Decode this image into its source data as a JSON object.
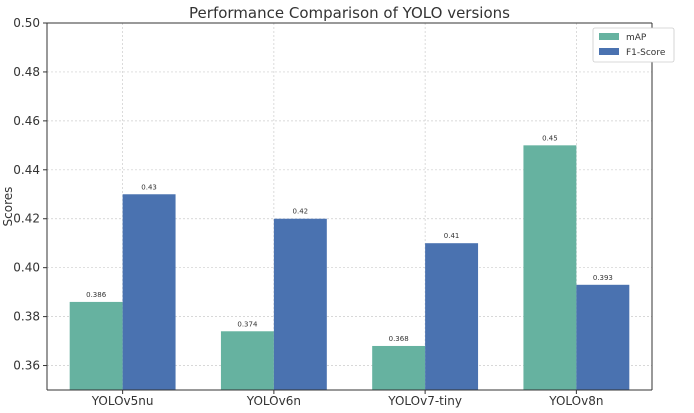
{
  "chart_data": {
    "type": "bar",
    "title": "Performance Comparison of YOLO versions",
    "xlabel": "",
    "ylabel": "Scores",
    "categories": [
      "YOLOv5nu",
      "YOLOv6n",
      "YOLOv7-tiny",
      "YOLOv8n"
    ],
    "series": [
      {
        "name": "mAP",
        "values": [
          0.386,
          0.374,
          0.368,
          0.45
        ],
        "labels": [
          "0.386",
          "0.374",
          "0.368",
          "0.45"
        ],
        "color": "#66b2a0"
      },
      {
        "name": "F1-Score",
        "values": [
          0.43,
          0.42,
          0.41,
          0.393
        ],
        "labels": [
          "0.43",
          "0.42",
          "0.41",
          "0.393"
        ],
        "color": "#4a72b0"
      }
    ],
    "ylim": [
      0.35,
      0.5
    ],
    "yticks": [
      0.36,
      0.38,
      0.4,
      0.42,
      0.44,
      0.46,
      0.48,
      0.5
    ],
    "ytick_labels": [
      "0.36",
      "0.38",
      "0.40",
      "0.42",
      "0.44",
      "0.46",
      "0.48",
      "0.50"
    ],
    "grid": true,
    "legend_position": "top-right"
  }
}
